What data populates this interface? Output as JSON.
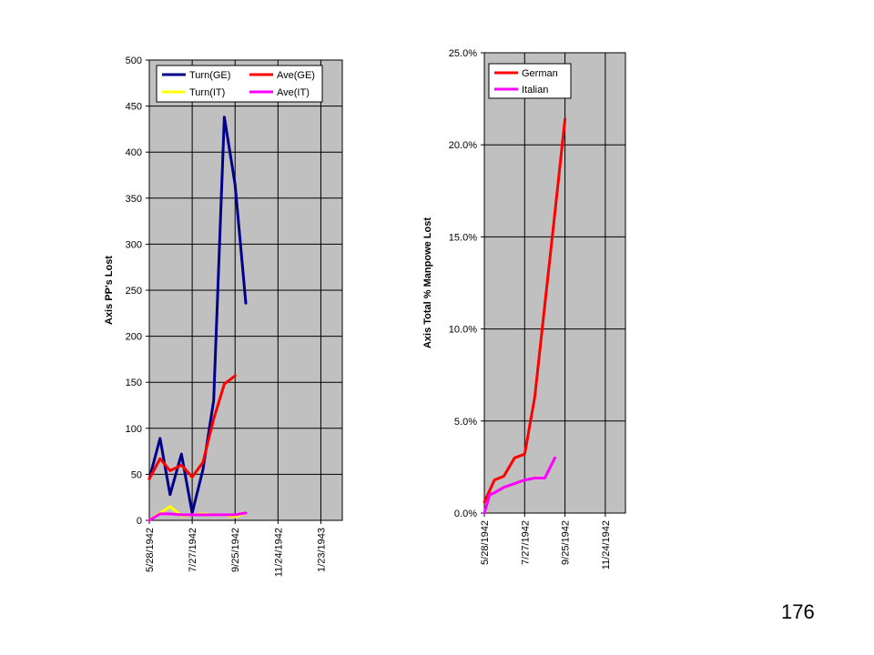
{
  "page": {
    "number": "176"
  },
  "chart_data": [
    {
      "type": "line",
      "title": "",
      "xlabel": "",
      "ylabel": "Axis PP's Lost",
      "x_tick_labels": [
        "5/28/1942",
        "7/27/1942",
        "9/25/1942",
        "11/24/1942",
        "1/23/1943"
      ],
      "x_ticks": [
        "1942-05-28",
        "1942-07-27",
        "1942-09-25",
        "1942-11-24",
        "1943-01-23"
      ],
      "xlim": [
        "1942-05-28",
        "1943-02-22"
      ],
      "ylim": [
        0,
        500
      ],
      "y_ticks": [
        0,
        50,
        100,
        150,
        200,
        250,
        300,
        350,
        400,
        450,
        500
      ],
      "y_tick_labels": [
        "0",
        "50",
        "100",
        "150",
        "200",
        "250",
        "300",
        "350",
        "400",
        "450",
        "500"
      ],
      "grid": true,
      "plot_bg": "#c0c0c0",
      "legend": {
        "placement": "top",
        "columns": 2
      },
      "x": [
        "1942-05-28",
        "1942-06-12",
        "1942-06-27",
        "1942-07-12",
        "1942-07-27",
        "1942-08-11",
        "1942-08-26",
        "1942-09-10",
        "1942-09-25",
        "1942-10-10"
      ],
      "series": [
        {
          "name": "Turn(GE)",
          "color": "#00008b",
          "points": [
            [
              "1942-05-28",
              45
            ],
            [
              "1942-06-12",
              89
            ],
            [
              "1942-06-26",
              28
            ],
            [
              "1942-07-12",
              72
            ],
            [
              "1942-07-27",
              8
            ],
            [
              "1942-08-11",
              55
            ],
            [
              "1942-08-26",
              130
            ],
            [
              "1942-09-10",
              438
            ],
            [
              "1942-09-25",
              365
            ],
            [
              "1942-10-10",
              236
            ]
          ]
        },
        {
          "name": "Ave(GE)",
          "color": "#ff0000",
          "points": [
            [
              "1942-05-28",
              45
            ],
            [
              "1942-06-12",
              67
            ],
            [
              "1942-06-26",
              54
            ],
            [
              "1942-07-12",
              60
            ],
            [
              "1942-07-27",
              47
            ],
            [
              "1942-08-11",
              63
            ],
            [
              "1942-08-26",
              110
            ],
            [
              "1942-09-10",
              148
            ],
            [
              "1942-09-25",
              157
            ]
          ]
        },
        {
          "name": "Turn(IT)",
          "color": "#ffff00",
          "points": [
            [
              "1942-05-28",
              0
            ],
            [
              "1942-06-12",
              8
            ],
            [
              "1942-06-26",
              15
            ],
            [
              "1942-07-12",
              5
            ],
            [
              "1942-07-27",
              6
            ],
            [
              "1942-08-11",
              7
            ],
            [
              "1942-08-26",
              6
            ],
            [
              "1942-09-10",
              6
            ],
            [
              "1942-09-25",
              4
            ],
            [
              "1942-10-10",
              8
            ]
          ]
        },
        {
          "name": "Ave(IT)",
          "color": "#ff00ff",
          "points": [
            [
              "1942-05-28",
              0
            ],
            [
              "1942-06-12",
              7
            ],
            [
              "1942-06-26",
              7
            ],
            [
              "1942-07-12",
              6
            ],
            [
              "1942-07-27",
              6
            ],
            [
              "1942-08-11",
              6
            ],
            [
              "1942-08-26",
              6
            ],
            [
              "1942-09-10",
              6
            ],
            [
              "1942-09-25",
              6
            ],
            [
              "1942-10-10",
              8
            ]
          ]
        }
      ]
    },
    {
      "type": "line",
      "title": "",
      "xlabel": "",
      "ylabel": "Axis Total % Manpowe Lost",
      "x_tick_labels": [
        "5/28/1942",
        "7/27/1942",
        "9/25/1942",
        "11/24/1942"
      ],
      "x_ticks": [
        "1942-05-28",
        "1942-07-27",
        "1942-09-25",
        "1942-11-24"
      ],
      "xlim": [
        "1942-05-28",
        "1942-12-24"
      ],
      "ylim": [
        0,
        25
      ],
      "y_ticks": [
        0,
        5,
        10,
        15,
        20,
        25
      ],
      "y_tick_labels": [
        "0.0%",
        "5.0%",
        "10.0%",
        "15.0%",
        "20.0%",
        "25.0%"
      ],
      "grid": true,
      "plot_bg": "#c0c0c0",
      "legend": {
        "placement": "top-left",
        "columns": 1
      },
      "series": [
        {
          "name": "German",
          "color": "#ff0000",
          "points": [
            [
              "1942-05-28",
              0.6
            ],
            [
              "1942-06-12",
              1.8
            ],
            [
              "1942-06-26",
              2.0
            ],
            [
              "1942-07-12",
              3.0
            ],
            [
              "1942-07-27",
              3.2
            ],
            [
              "1942-08-11",
              6.3
            ],
            [
              "1942-08-26",
              11.3
            ],
            [
              "1942-09-10",
              16.3
            ],
            [
              "1942-09-25",
              21.4
            ]
          ]
        },
        {
          "name": "Italian",
          "color": "#ff00ff",
          "points": [
            [
              "1942-05-28",
              0.0
            ],
            [
              "1942-06-05",
              1.0
            ],
            [
              "1942-06-12",
              1.1
            ],
            [
              "1942-06-26",
              1.4
            ],
            [
              "1942-07-12",
              1.6
            ],
            [
              "1942-07-27",
              1.8
            ],
            [
              "1942-08-11",
              1.9
            ],
            [
              "1942-08-26",
              1.9
            ],
            [
              "1942-09-10",
              3.0
            ]
          ]
        }
      ]
    }
  ]
}
